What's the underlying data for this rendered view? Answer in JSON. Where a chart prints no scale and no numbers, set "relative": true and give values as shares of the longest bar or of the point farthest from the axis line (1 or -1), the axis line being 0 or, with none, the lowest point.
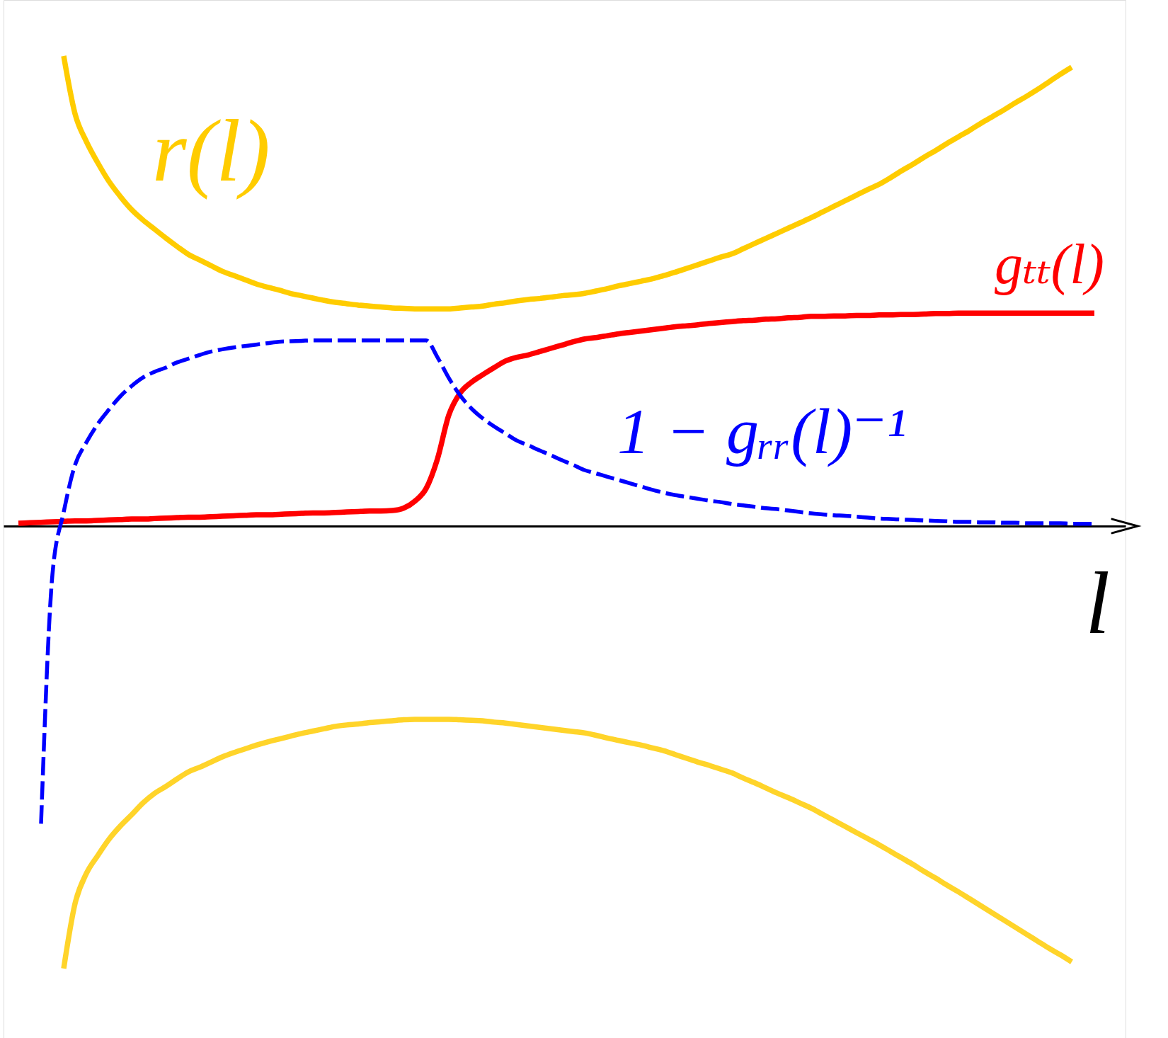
{
  "chart_data": {
    "type": "line",
    "relative": true,
    "xlabel": "l",
    "line_style": "solid",
    "categories": [
      null,
      null,
      null,
      null,
      null,
      null,
      null,
      null,
      null,
      null,
      null,
      null,
      null,
      null,
      null,
      null,
      null,
      null,
      null,
      null,
      null,
      null,
      null,
      null,
      null,
      null,
      null,
      null,
      null,
      null,
      null,
      null,
      null,
      null,
      null,
      null,
      null,
      null,
      null,
      null,
      null,
      null,
      null,
      null,
      null,
      null,
      null,
      null,
      null,
      null,
      null,
      null,
      null,
      null,
      null,
      null,
      null,
      null,
      null,
      null,
      null,
      null,
      null,
      null,
      null,
      null,
      null,
      null,
      null,
      null,
      null,
      null,
      null,
      null,
      null,
      null,
      null,
      null,
      null,
      null,
      null,
      null,
      null,
      null,
      null,
      null,
      null,
      null,
      null,
      null,
      null,
      null,
      null,
      null,
      null,
      null,
      null,
      null
    ],
    "series": [
      {
        "name": "r(l)",
        "color": "#ffcc00",
        "values": [
          null,
          null,
          null,
          null,
          null,
          1,
          0.877,
          0.818,
          0.773,
          0.733,
          0.701,
          0.673,
          0.651,
          0.632,
          0.613,
          0.595,
          0.578,
          0.566,
          0.554,
          0.542,
          0.533,
          0.524,
          0.515,
          0.508,
          0.502,
          0.495,
          0.49,
          0.485,
          0.48,
          0.476,
          0.473,
          0.47,
          0.468,
          0.466,
          0.464,
          0.463,
          0.462,
          0.462,
          0.462,
          0.462,
          0.464,
          0.466,
          0.468,
          0.472,
          0.475,
          0.479,
          0.482,
          0.484,
          0.487,
          0.49,
          0.492,
          0.495,
          0.5,
          0.505,
          0.511,
          0.516,
          0.521,
          0.526,
          0.533,
          0.54,
          0.548,
          0.556,
          0.564,
          0.572,
          0.579,
          0.59,
          0.601,
          0.612,
          0.623,
          0.634,
          0.645,
          0.656,
          0.668,
          0.68,
          0.692,
          0.704,
          0.716,
          0.727,
          0.741,
          0.756,
          0.77,
          0.785,
          0.799,
          0.814,
          0.828,
          0.842,
          0.857,
          0.871,
          0.885,
          0.9,
          0.914,
          0.929,
          0.945,
          0.961,
          0.976,
          null,
          null,
          null
        ]
      },
      {
        "name": "gₜₜ(l)",
        "color": "#ff0000",
        "values": [
          null,
          0.006,
          0.007,
          0.008,
          0.009,
          0.01,
          0.011,
          0.011,
          0.012,
          0.013,
          0.014,
          0.015,
          0.015,
          0.016,
          0.017,
          0.018,
          0.019,
          0.019,
          0.02,
          0.021,
          0.022,
          0.023,
          0.024,
          0.024,
          0.025,
          0.026,
          0.027,
          0.028,
          0.028,
          0.029,
          0.03,
          0.031,
          0.032,
          0.032,
          0.033,
          0.038,
          0.053,
          0.08,
          0.143,
          0.236,
          0.283,
          0.306,
          0.322,
          0.337,
          0.351,
          0.359,
          0.364,
          0.371,
          0.378,
          0.385,
          0.392,
          0.398,
          0.401,
          0.405,
          0.409,
          0.412,
          0.415,
          0.418,
          0.421,
          0.424,
          0.426,
          0.428,
          0.431,
          0.433,
          0.435,
          0.437,
          0.438,
          0.44,
          0.441,
          0.443,
          0.444,
          0.446,
          0.446,
          0.447,
          0.447,
          0.448,
          0.448,
          0.449,
          0.449,
          0.45,
          0.45,
          0.451,
          0.452,
          0.452,
          0.453,
          0.453,
          0.453,
          0.453,
          0.453,
          0.453,
          0.453,
          0.453,
          0.453,
          0.453,
          0.453,
          0.453,
          0.453,
          null
        ]
      },
      {
        "name": "1 − gᵣᵣ(l)⁻¹",
        "color": "#0000ff",
        "line_style": "dashed",
        "values": [
          null,
          null,
          null,
          -0.633,
          -0.104,
          0.03,
          0.13,
          0.178,
          0.217,
          0.248,
          0.276,
          0.298,
          0.316,
          0.328,
          0.337,
          0.348,
          0.356,
          0.364,
          0.371,
          0.376,
          0.38,
          0.383,
          0.386,
          0.389,
          0.392,
          0.393,
          0.394,
          0.395,
          0.395,
          0.395,
          0.395,
          0.395,
          0.395,
          0.395,
          0.395,
          0.395,
          0.395,
          0.395,
          0.359,
          0.315,
          0.278,
          0.25,
          0.229,
          0.212,
          0.197,
          0.182,
          0.172,
          0.161,
          0.151,
          0.14,
          0.13,
          0.119,
          0.112,
          0.105,
          0.098,
          0.091,
          0.084,
          0.077,
          0.071,
          0.066,
          0.062,
          0.058,
          0.054,
          0.051,
          0.047,
          0.044,
          0.041,
          0.038,
          0.036,
          0.033,
          0.03,
          0.027,
          0.025,
          0.023,
          0.022,
          0.02,
          0.018,
          0.016,
          0.015,
          0.014,
          0.013,
          0.012,
          0.011,
          0.01,
          0.009,
          0.009,
          0.008,
          0.008,
          0.007,
          0.007,
          0.006,
          0.006,
          0.006,
          0.006,
          0.005,
          0.005,
          0.005,
          null
        ]
      },
      {
        "color": "#ffd42a",
        "values": [
          null,
          null,
          null,
          null,
          null,
          -0.941,
          -0.803,
          -0.739,
          -0.701,
          -0.666,
          -0.638,
          -0.614,
          -0.589,
          -0.569,
          -0.554,
          -0.538,
          -0.523,
          -0.513,
          -0.502,
          -0.491,
          -0.482,
          -0.474,
          -0.466,
          -0.459,
          -0.453,
          -0.447,
          -0.441,
          -0.436,
          -0.431,
          -0.426,
          -0.423,
          -0.421,
          -0.418,
          -0.416,
          -0.414,
          -0.412,
          -0.411,
          -0.411,
          -0.411,
          -0.411,
          -0.412,
          -0.413,
          -0.414,
          -0.417,
          -0.419,
          -0.422,
          -0.425,
          -0.428,
          -0.431,
          -0.434,
          -0.437,
          -0.44,
          -0.445,
          -0.451,
          -0.456,
          -0.461,
          -0.466,
          -0.472,
          -0.478,
          -0.486,
          -0.494,
          -0.502,
          -0.509,
          -0.517,
          -0.525,
          -0.536,
          -0.546,
          -0.557,
          -0.568,
          -0.578,
          -0.589,
          -0.6,
          -0.613,
          -0.626,
          -0.639,
          -0.652,
          -0.665,
          -0.678,
          -0.692,
          -0.706,
          -0.72,
          -0.735,
          -0.749,
          -0.764,
          -0.778,
          -0.793,
          -0.808,
          -0.823,
          -0.838,
          -0.853,
          -0.868,
          -0.883,
          -0.898,
          -0.912,
          -0.927,
          null,
          null,
          null
        ]
      }
    ]
  }
}
